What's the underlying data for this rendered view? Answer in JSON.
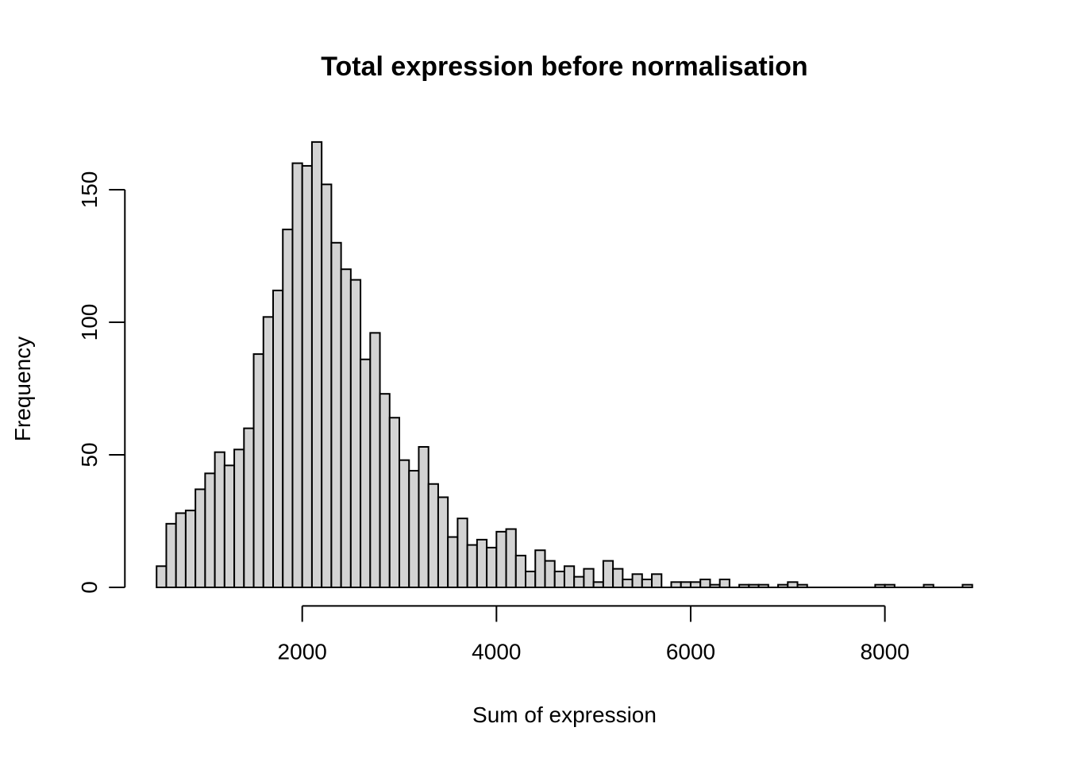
{
  "chart_data": {
    "type": "bar",
    "subtype": "histogram",
    "title": "Total expression before normalisation",
    "xlabel": "Sum of expression",
    "ylabel": "Frequency",
    "bin_start": 500,
    "bin_width": 100,
    "counts": [
      8,
      24,
      28,
      29,
      37,
      43,
      51,
      46,
      52,
      60,
      88,
      102,
      112,
      135,
      160,
      159,
      168,
      152,
      130,
      120,
      116,
      86,
      96,
      73,
      64,
      48,
      44,
      53,
      39,
      34,
      19,
      26,
      16,
      18,
      15,
      21,
      22,
      12,
      6,
      14,
      10,
      6,
      8,
      4,
      7,
      2,
      10,
      7,
      3,
      5,
      3,
      5,
      0,
      2,
      2,
      2,
      3,
      1,
      3,
      0,
      1,
      1,
      1,
      0,
      1,
      2,
      1,
      0,
      0,
      0,
      0,
      0,
      0,
      0,
      1,
      1,
      0,
      0,
      0,
      1,
      0,
      0,
      0,
      1
    ],
    "x_ticks": [
      2000,
      4000,
      6000,
      8000
    ],
    "y_ticks": [
      0,
      50,
      100,
      150
    ],
    "xlim": [
      500,
      8900
    ],
    "ylim": [
      0,
      168
    ],
    "grid": false,
    "legend_position": "none",
    "bar_fill": "#d3d3d3",
    "bar_stroke": "#000000",
    "axis_color": "#000000",
    "background": "#ffffff"
  }
}
